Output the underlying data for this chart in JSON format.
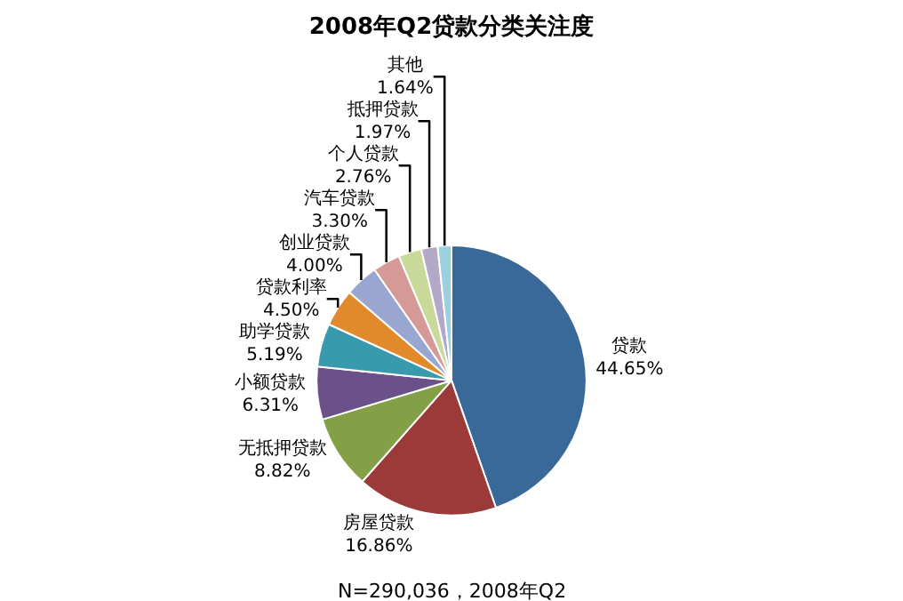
{
  "chart_data": {
    "type": "pie",
    "title": "2008年Q2贷款分类关注度",
    "categories": [
      "贷款",
      "房屋贷款",
      "无抵押贷款",
      "小额贷款",
      "助学贷款",
      "贷款利率",
      "创业贷款",
      "汽车贷款",
      "个人贷款",
      "抵押贷款",
      "其他"
    ],
    "values": [
      44.65,
      16.86,
      8.82,
      6.31,
      5.19,
      4.5,
      4.0,
      3.3,
      2.76,
      1.97,
      1.64
    ],
    "value_labels": [
      "44.65%",
      "16.86%",
      "8.82%",
      "6.31%",
      "5.19%",
      "4.50%",
      "4.00%",
      "3.30%",
      "2.76%",
      "1.97%",
      "1.64%"
    ],
    "colors": [
      "#386998",
      "#9b3a38",
      "#84a046",
      "#6b508a",
      "#3a9aad",
      "#e08a2c",
      "#99a6d0",
      "#d59a98",
      "#c8d99a",
      "#b3a8c8",
      "#9cd0dc"
    ],
    "annotations": [
      "N=290,036，2008年Q2"
    ],
    "legend": false
  }
}
